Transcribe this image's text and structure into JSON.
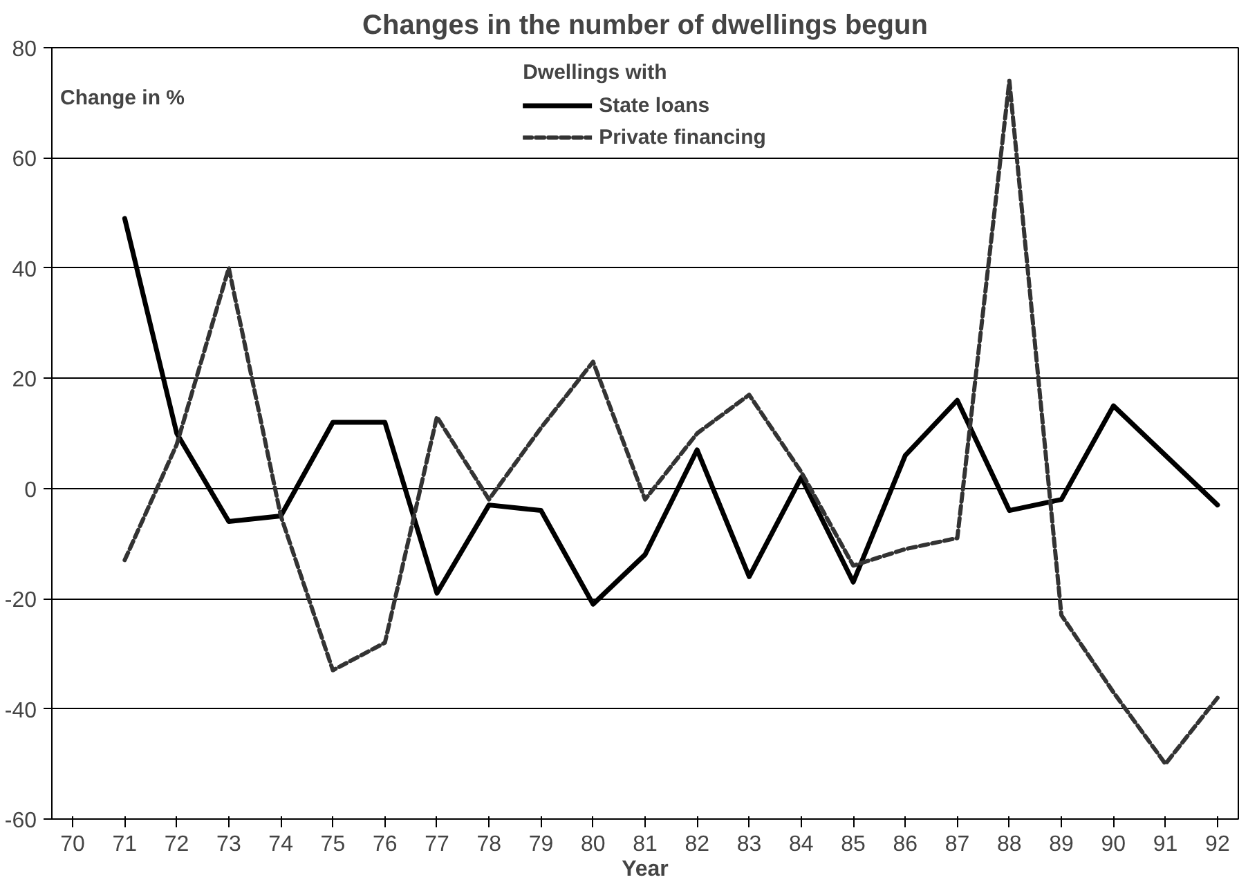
{
  "chart_data": {
    "type": "line",
    "title": "Changes in the number of dwellings begun",
    "xlabel": "Year",
    "ylabel": "Change in %",
    "legend_title": "Dwellings with",
    "legend": "top",
    "grid": "y",
    "marker": "none",
    "x": [
      71,
      72,
      73,
      74,
      75,
      76,
      77,
      78,
      79,
      80,
      81,
      82,
      83,
      84,
      85,
      86,
      87,
      88,
      89,
      90,
      91,
      92
    ],
    "xlim": [
      69.6,
      92.4
    ],
    "xticks": [
      70,
      71,
      72,
      73,
      74,
      75,
      76,
      77,
      78,
      79,
      80,
      81,
      82,
      83,
      84,
      85,
      86,
      87,
      88,
      89,
      90,
      91,
      92
    ],
    "ylim": [
      -60,
      80
    ],
    "yticks": [
      -60,
      -40,
      -20,
      0,
      20,
      40,
      60,
      80
    ],
    "series": [
      {
        "name": "State loans",
        "color": "#000000",
        "line_style": "solid",
        "values": [
          49,
          10,
          -6,
          -5,
          12,
          12,
          -19,
          -3,
          -4,
          -21,
          -12,
          7,
          -16,
          2,
          -17,
          6,
          16,
          -4,
          -2,
          15,
          6,
          -3
        ]
      },
      {
        "name": "Private financing",
        "color": "#333333",
        "line_style": "dashed",
        "values": [
          -13,
          8,
          40,
          -5,
          -33,
          -28,
          13,
          -2,
          11,
          23,
          -2,
          10,
          17,
          3,
          -14,
          -11,
          -9,
          74,
          -23,
          -37,
          -50,
          -38
        ]
      }
    ]
  }
}
